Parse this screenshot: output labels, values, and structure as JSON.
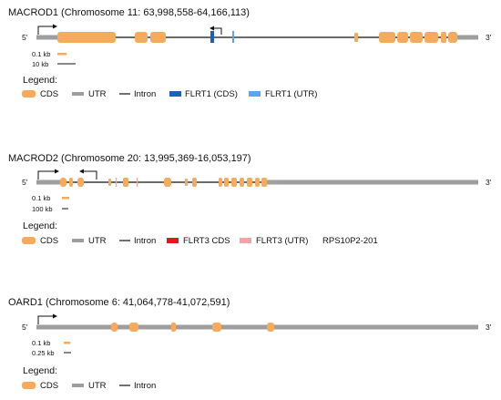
{
  "colors": {
    "cds": "#F5AA5C",
    "utr": "#9E9E9E",
    "intron": "#111111",
    "flrt1_cds": "#1F5FB8",
    "flrt1_utr": "#5AA6EC",
    "flrt3_cds": "#E0191A",
    "flrt3_utr": "#F5A3A8"
  },
  "genes": [
    {
      "id": "macrod1",
      "title": "MACROD1 (Chromosome 11: 63,998,558-64,166,113)",
      "five_prime": "5'",
      "three_prime": "3'",
      "scale_a": "0.1 kb",
      "scale_b": "10 kb",
      "legend_heading": "Legend:",
      "legend": [
        "CDS",
        "UTR",
        "Intron",
        "FLRT1 (CDS)",
        "FLRT1 (UTR)"
      ]
    },
    {
      "id": "macrod2",
      "title": "MACROD2 (Chromosome 20: 13,995,369-16,053,197)",
      "five_prime": "5'",
      "three_prime": "3'",
      "scale_a": "0.1 kb",
      "scale_b": "100 kb",
      "legend_heading": "Legend:",
      "legend": [
        "CDS",
        "UTR",
        "Intron",
        "FLRT3 CDS",
        "FLRT3 (UTR)",
        "RPS10P2-201"
      ]
    },
    {
      "id": "oard1",
      "title": "OARD1 (Chromosome 6: 41,064,778-41,072,591)",
      "five_prime": "5'",
      "three_prime": "3'",
      "scale_a": "0.1 kb",
      "scale_b": "0.25 kb",
      "legend_heading": "Legend:",
      "legend": [
        "CDS",
        "UTR",
        "Intron"
      ]
    }
  ]
}
